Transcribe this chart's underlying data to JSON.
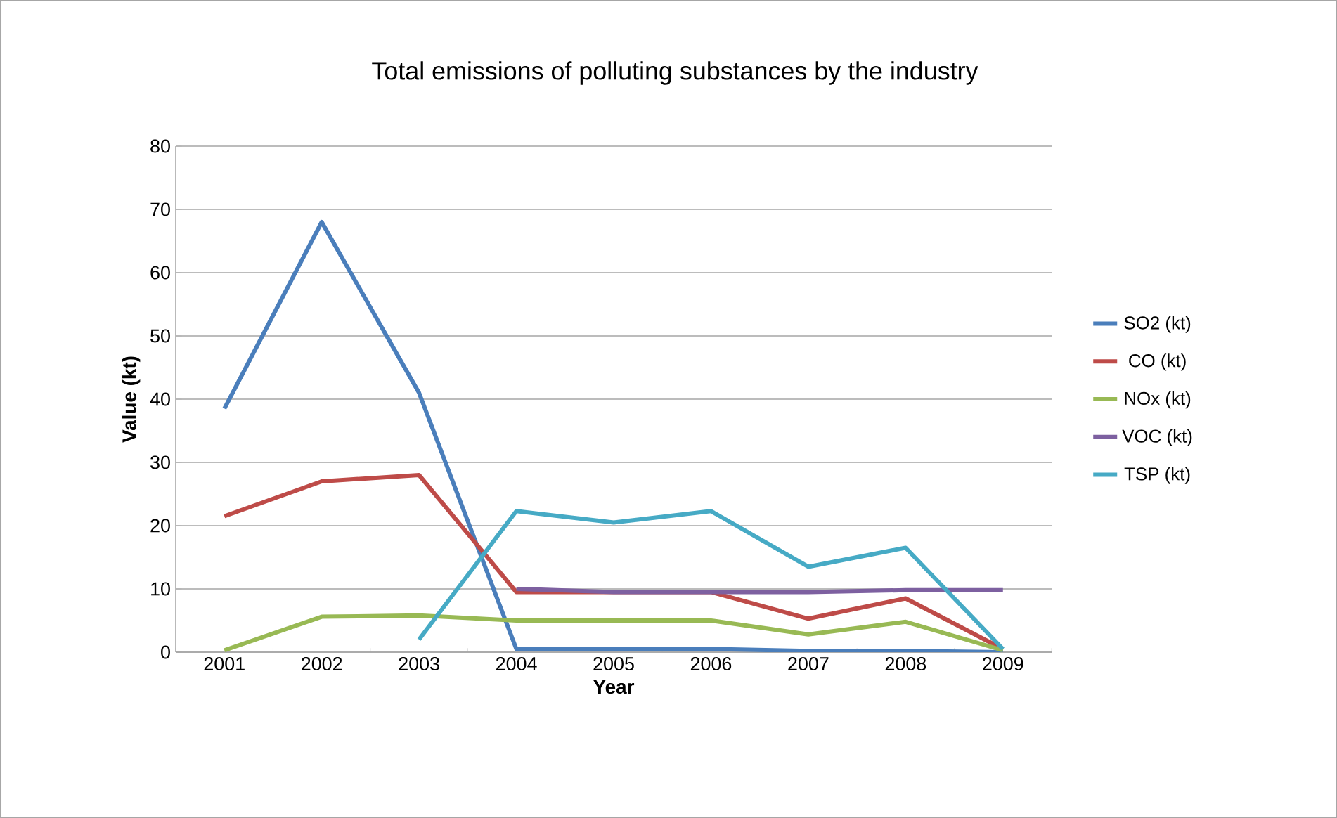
{
  "chart_data": {
    "type": "line",
    "title": "Total emissions of polluting substances by the industry",
    "xlabel": "Year",
    "ylabel": "Value (kt)",
    "categories": [
      "2001",
      "2002",
      "2003",
      "2004",
      "2005",
      "2006",
      "2007",
      "2008",
      "2009"
    ],
    "series": [
      {
        "name": "SO2 (kt)",
        "color": "#4a7ebb",
        "values": [
          38.5,
          68,
          41,
          0.5,
          0.5,
          0.5,
          0.2,
          0.2,
          0
        ]
      },
      {
        "name": "CO (kt)",
        "color": "#be4b48",
        "values": [
          21.5,
          27,
          28,
          9.5,
          9.5,
          9.5,
          5.3,
          8.5,
          0.5
        ]
      },
      {
        "name": "NOx (kt)",
        "color": "#98b954",
        "values": [
          0.3,
          5.6,
          5.8,
          5,
          5,
          5,
          2.8,
          4.8,
          0.3
        ]
      },
      {
        "name": "VOC (kt)",
        "color": "#7d60a0",
        "values": [
          null,
          null,
          null,
          10,
          9.5,
          9.5,
          9.5,
          9.8,
          9.8
        ]
      },
      {
        "name": "TSP (kt)",
        "color": "#46aac5",
        "values": [
          null,
          null,
          2,
          22.3,
          20.5,
          22.3,
          13.5,
          16.5,
          0.5
        ]
      }
    ],
    "ylim": [
      0,
      80
    ],
    "yticks": [
      0,
      10,
      20,
      30,
      40,
      50,
      60,
      70,
      80
    ],
    "grid": "y",
    "legend": "right",
    "marker": "none",
    "line_style": "solid"
  }
}
